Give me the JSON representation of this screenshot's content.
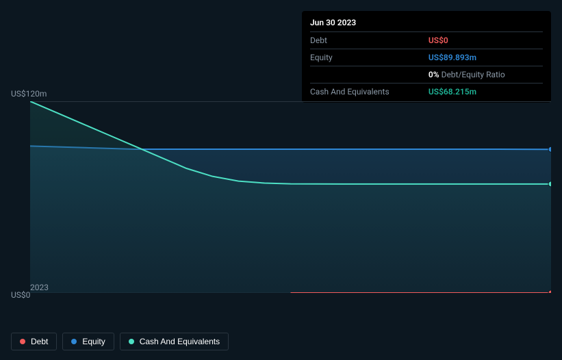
{
  "tooltip": {
    "date": "Jun 30 2023",
    "rows": [
      {
        "label": "Debt",
        "value": "US$0",
        "color": "#f15b5b"
      },
      {
        "label": "Equity",
        "value": "US$89.893m",
        "color": "#2f88d6"
      },
      {
        "label": "",
        "value": "0%",
        "suffix": "Debt/Equity Ratio",
        "color": "#ffffff",
        "suffix_color": "#8a98a6"
      },
      {
        "label": "Cash And Equivalents",
        "value": "US$68.215m",
        "color": "#1fb396"
      }
    ]
  },
  "chart": {
    "type": "area",
    "y_label_top": "US$120m",
    "y_label_bottom": "US$0",
    "x_label": "2023",
    "x_range": [
      0,
      1
    ],
    "y_range": [
      0,
      120
    ],
    "background_color": "#0c1720",
    "grid_line_color": "#2a3640",
    "series": [
      {
        "name": "Equity",
        "stroke": "#2f88d6",
        "fill_from": "#1c4a6a",
        "fill_to": "#15324a",
        "fill_opacity": 0.55,
        "stroke_width": 2,
        "points": [
          {
            "x": 0.0,
            "y": 92
          },
          {
            "x": 0.1,
            "y": 91
          },
          {
            "x": 0.2,
            "y": 90
          },
          {
            "x": 0.3,
            "y": 90
          },
          {
            "x": 0.4,
            "y": 90
          },
          {
            "x": 0.5,
            "y": 90
          },
          {
            "x": 0.6,
            "y": 90
          },
          {
            "x": 0.7,
            "y": 90
          },
          {
            "x": 0.8,
            "y": 90
          },
          {
            "x": 0.9,
            "y": 90
          },
          {
            "x": 1.0,
            "y": 89.893
          }
        ],
        "end_marker": true
      },
      {
        "name": "Cash And Equivalents",
        "stroke": "#4de0c4",
        "fill_from": "#1a5a58",
        "fill_to": "#153a3e",
        "fill_opacity": 0.35,
        "stroke_width": 2,
        "points": [
          {
            "x": 0.0,
            "y": 120
          },
          {
            "x": 0.05,
            "y": 113
          },
          {
            "x": 0.1,
            "y": 106
          },
          {
            "x": 0.15,
            "y": 99
          },
          {
            "x": 0.2,
            "y": 92
          },
          {
            "x": 0.25,
            "y": 85
          },
          {
            "x": 0.3,
            "y": 78
          },
          {
            "x": 0.35,
            "y": 73
          },
          {
            "x": 0.4,
            "y": 70
          },
          {
            "x": 0.45,
            "y": 68.8
          },
          {
            "x": 0.5,
            "y": 68.3
          },
          {
            "x": 0.6,
            "y": 68.2
          },
          {
            "x": 0.7,
            "y": 68.2
          },
          {
            "x": 0.8,
            "y": 68.2
          },
          {
            "x": 0.9,
            "y": 68.2
          },
          {
            "x": 1.0,
            "y": 68.215
          }
        ],
        "end_marker": true
      },
      {
        "name": "Debt",
        "stroke": "#f15b5b",
        "fill_from": "#f15b5b",
        "fill_to": "#f15b5b",
        "fill_opacity": 0,
        "stroke_width": 2,
        "points": [
          {
            "x": 0.5,
            "y": 0
          },
          {
            "x": 0.6,
            "y": 0
          },
          {
            "x": 0.7,
            "y": 0
          },
          {
            "x": 0.8,
            "y": 0
          },
          {
            "x": 0.9,
            "y": 0
          },
          {
            "x": 1.0,
            "y": 0
          }
        ],
        "end_marker": true
      }
    ]
  },
  "legend": [
    {
      "label": "Debt",
      "color": "#f15b5b"
    },
    {
      "label": "Equity",
      "color": "#2f88d6"
    },
    {
      "label": "Cash And Equivalents",
      "color": "#4de0c4"
    }
  ]
}
